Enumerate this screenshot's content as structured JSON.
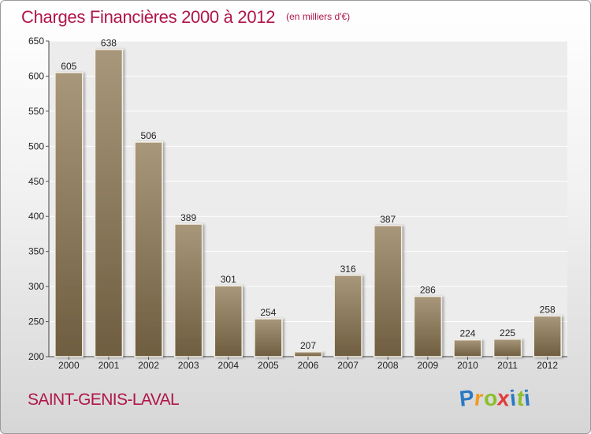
{
  "title": "Charges Financières 2000 à 2012",
  "subtitle": "(en milliers d'€)",
  "city": "SAINT-GENIS-LAVAL",
  "logo": {
    "text": "Proxiti",
    "letters": [
      "P",
      "r",
      "o",
      "x",
      "i",
      "t",
      "i"
    ],
    "colors": [
      "#2b79c2",
      "#f29a1f",
      "#8cbf2a",
      "#e23b3b",
      "#2b79c2",
      "#8cbf2a",
      "#2b79c2"
    ]
  },
  "colors": {
    "accent": "#b0154a",
    "bar_top": "#a8977a",
    "bar_bottom": "#6f5d40"
  },
  "chart_data": {
    "type": "bar",
    "categories": [
      "2000",
      "2001",
      "2002",
      "2003",
      "2004",
      "2005",
      "2006",
      "2007",
      "2008",
      "2009",
      "2010",
      "2011",
      "2012"
    ],
    "values": [
      605,
      638,
      506,
      389,
      301,
      254,
      207,
      316,
      387,
      286,
      224,
      225,
      258
    ],
    "ylim": [
      200,
      650
    ],
    "yticks": [
      200,
      250,
      300,
      350,
      400,
      450,
      500,
      550,
      600,
      650
    ],
    "grid": true
  }
}
